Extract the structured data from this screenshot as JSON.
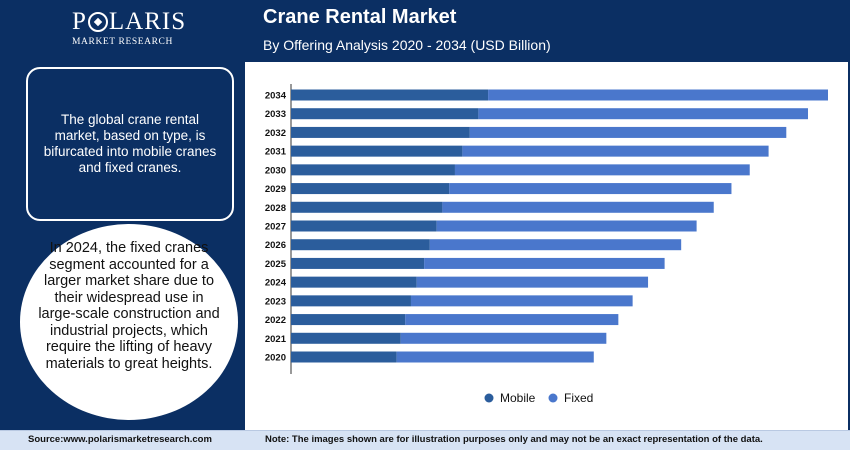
{
  "logo": {
    "main_pre": "P",
    "main_post": "LARIS",
    "sub": "MARKET RESEARCH"
  },
  "header": {
    "title": "Crane Rental Market",
    "subtitle": "By Offering Analysis 2020 - 2034 (USD Billion)"
  },
  "sidebar": {
    "box_text": "The global crane rental market, based on type, is bifurcated into mobile cranes and fixed cranes.",
    "circle_text": "In 2024, the fixed cranes segment accounted for a larger market share due to their widespread use in large-scale construction and industrial projects, which require the lifting of heavy materials to great heights."
  },
  "footer": {
    "source": "Source:www.polarismarketresearch.com",
    "note": "Note: The images shown are for illustration purposes only and may not be an exact representation of the data."
  },
  "colors": {
    "mobile": "#2b5d9c",
    "fixed": "#4a77cc",
    "brand": "#0b2f63"
  },
  "chart_data": {
    "type": "bar",
    "orientation": "horizontal",
    "stacked": true,
    "categories": [
      "2020",
      "2021",
      "2022",
      "2023",
      "2024",
      "2025",
      "2026",
      "2027",
      "2028",
      "2029",
      "2030",
      "2031",
      "2032",
      "2033",
      "2034"
    ],
    "series": [
      {
        "name": "Mobile",
        "values": [
          18.5,
          19.2,
          20.0,
          21.0,
          22.0,
          23.3,
          24.3,
          25.5,
          26.5,
          27.7,
          28.7,
          30.0,
          31.3,
          32.8,
          34.5
        ]
      },
      {
        "name": "Fixed",
        "values": [
          34.5,
          36.0,
          37.3,
          38.8,
          40.5,
          42.1,
          44.0,
          45.5,
          47.5,
          49.4,
          51.6,
          53.6,
          55.4,
          57.7,
          59.5
        ]
      }
    ],
    "xlim": [
      0,
      95
    ],
    "grid": false,
    "legend": "bottom"
  }
}
